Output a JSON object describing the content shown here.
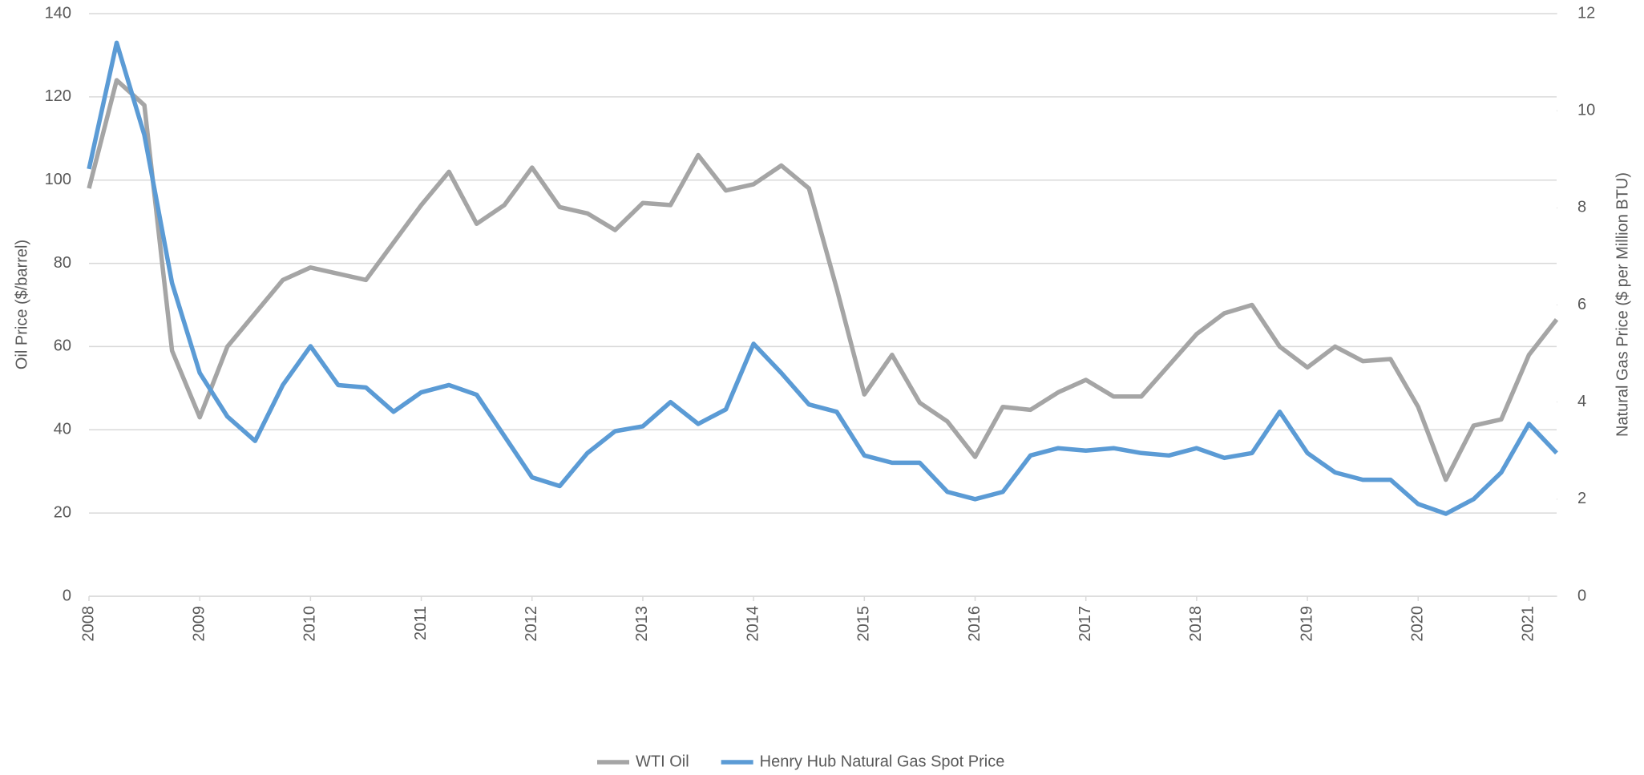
{
  "chart_data": {
    "type": "line",
    "x": [
      2008,
      2008.25,
      2008.5,
      2008.75,
      2009,
      2009.25,
      2009.5,
      2009.75,
      2010,
      2010.25,
      2010.5,
      2010.75,
      2011,
      2011.25,
      2011.5,
      2011.75,
      2012,
      2012.25,
      2012.5,
      2012.75,
      2013,
      2013.25,
      2013.5,
      2013.75,
      2014,
      2014.25,
      2014.5,
      2014.75,
      2015,
      2015.25,
      2015.5,
      2015.75,
      2016,
      2016.25,
      2016.5,
      2016.75,
      2017,
      2017.25,
      2017.5,
      2017.75,
      2018,
      2018.25,
      2018.5,
      2018.75,
      2019,
      2019.25,
      2019.5,
      2019.75,
      2020,
      2020.25,
      2020.5,
      2020.75,
      2021,
      2021.25
    ],
    "series": [
      {
        "name": "WTI Oil",
        "color": "#a5a5a5",
        "axis": "y",
        "values": [
          98,
          124,
          118,
          59,
          43,
          60,
          68,
          76,
          79,
          77.5,
          76,
          85,
          94,
          102,
          89.5,
          94,
          103,
          93.5,
          92,
          88,
          94.5,
          94,
          106,
          97.5,
          99,
          103.5,
          98,
          74,
          48.5,
          58,
          46.5,
          42,
          33.5,
          45.5,
          44.8,
          49,
          52,
          48,
          48,
          55.5,
          63,
          68,
          70,
          60,
          55,
          60,
          56.5,
          57,
          45.5,
          28,
          41,
          42.5,
          58,
          66.5
        ]
      },
      {
        "name": "Henry Hub Natural Gas Spot Price",
        "color": "#5b9bd5",
        "axis": "y2",
        "values": [
          8.8,
          11.4,
          9.5,
          6.45,
          4.6,
          3.7,
          3.2,
          4.35,
          5.15,
          4.35,
          4.3,
          3.8,
          4.2,
          4.35,
          4.15,
          3.3,
          2.45,
          2.27,
          2.95,
          3.4,
          3.5,
          4.0,
          3.55,
          3.85,
          5.2,
          4.6,
          3.95,
          3.8,
          2.9,
          2.75,
          2.75,
          2.15,
          2.0,
          2.15,
          2.9,
          3.05,
          3.0,
          3.05,
          2.95,
          2.9,
          3.05,
          2.85,
          2.95,
          3.8,
          2.95,
          2.55,
          2.4,
          2.4,
          1.9,
          1.7,
          2.0,
          2.55,
          3.55,
          2.95
        ]
      }
    ],
    "y_label": "Oil Price ($/barrel)",
    "y2_label": "Natural Gas Price ($ per Million BTU)",
    "xlim": [
      2008,
      2021.25
    ],
    "xticks": [
      2008,
      2009,
      2010,
      2011,
      2012,
      2013,
      2014,
      2015,
      2016,
      2017,
      2018,
      2019,
      2020,
      2021
    ],
    "ylim": [
      0,
      140
    ],
    "yticks": [
      0,
      20,
      40,
      60,
      80,
      100,
      120,
      140
    ],
    "y2lim": [
      0,
      12
    ],
    "y2ticks": [
      0,
      2,
      4,
      6,
      8,
      10,
      12
    ],
    "grid": true,
    "legend": "bottom"
  }
}
